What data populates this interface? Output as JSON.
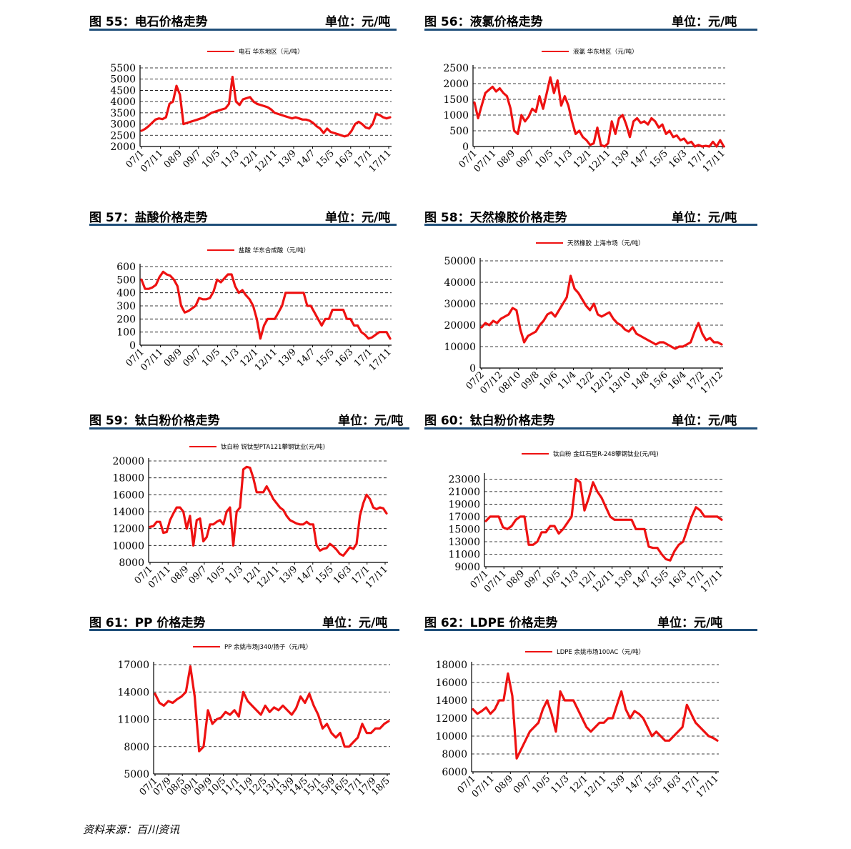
{
  "source": "资料来源：百川资讯",
  "panels": [
    {
      "fig_title": "图 55：电石价格走势",
      "unit_label": "单位：元/吨",
      "chart_data": {
        "type": "line",
        "legend": "电石 华东地区（元/吨）",
        "series_color": "#ee1111",
        "y_ticks": [
          "5500",
          "5000",
          "4500",
          "4000",
          "3500",
          "3000",
          "2500",
          "2000"
        ],
        "x_ticks": [
          "07/1",
          "07/11",
          "08/9",
          "09/7",
          "10/5",
          "11/3",
          "12/1",
          "12/11",
          "13/9",
          "14/7",
          "15/5",
          "16/3",
          "17/1",
          "17/11"
        ],
        "ylim": [
          2000,
          5500
        ],
        "grid": true,
        "y": [
          2700,
          2780,
          2900,
          3050,
          3200,
          3250,
          3220,
          3300,
          3900,
          4000,
          4700,
          4300,
          3000,
          3050,
          3100,
          3150,
          3200,
          3250,
          3300,
          3400,
          3500,
          3550,
          3600,
          3650,
          3700,
          3900,
          5100,
          4000,
          3850,
          4100,
          4150,
          4200,
          4000,
          3900,
          3850,
          3800,
          3750,
          3650,
          3500,
          3450,
          3400,
          3350,
          3300,
          3250,
          3300,
          3250,
          3200,
          3200,
          3150,
          3050,
          2900,
          2800,
          2600,
          2800,
          2650,
          2600,
          2550,
          2500,
          2450,
          2500,
          2700,
          3000,
          3100,
          3000,
          2850,
          2800,
          3000,
          3450,
          3400,
          3300,
          3250,
          3300
        ]
      }
    },
    {
      "fig_title": "图 56：液氯价格走势",
      "unit_label": "单位：元/吨",
      "chart_data": {
        "type": "line",
        "legend": "液氯 华东地区（元/吨）",
        "series_color": "#ee1111",
        "y_ticks": [
          "2500",
          "2000",
          "1500",
          "1000",
          "500",
          "0"
        ],
        "x_ticks": [
          "07/1",
          "07/11",
          "08/9",
          "09/7",
          "10/5",
          "11/3",
          "12/1",
          "12/11",
          "13/9",
          "14/7",
          "15/5",
          "16/3",
          "17/1",
          "17/11"
        ],
        "ylim": [
          0,
          2500
        ],
        "grid": true,
        "y": [
          1400,
          900,
          1300,
          1700,
          1800,
          1900,
          1750,
          1850,
          1700,
          1600,
          1200,
          500,
          400,
          1000,
          800,
          950,
          1200,
          1100,
          1600,
          1200,
          1700,
          2200,
          1700,
          2100,
          1300,
          1600,
          1300,
          800,
          400,
          500,
          300,
          200,
          50,
          100,
          600,
          50,
          0,
          100,
          800,
          400,
          900,
          1000,
          700,
          300,
          800,
          900,
          750,
          800,
          700,
          900,
          800,
          600,
          700,
          400,
          500,
          300,
          350,
          200,
          250,
          100,
          150,
          0,
          50,
          0,
          20,
          0,
          150,
          0,
          200,
          0
        ]
      }
    },
    {
      "fig_title": "图 57：盐酸价格走势",
      "unit_label": "单位：元/吨",
      "chart_data": {
        "type": "line",
        "legend": "盐酸 华东合成酸（元/吨）",
        "series_color": "#ee1111",
        "y_ticks": [
          "600",
          "500",
          "400",
          "300",
          "200",
          "100",
          "0"
        ],
        "x_ticks": [
          "07/1",
          "07/11",
          "08/9",
          "09/7",
          "10/5",
          "11/3",
          "12/1",
          "12/11",
          "13/9",
          "14/7",
          "15/5",
          "16/3",
          "17/1",
          "17/11"
        ],
        "ylim": [
          0,
          600
        ],
        "grid": true,
        "y": [
          500,
          430,
          430,
          440,
          460,
          520,
          560,
          540,
          530,
          500,
          450,
          300,
          250,
          260,
          280,
          300,
          360,
          350,
          350,
          360,
          410,
          500,
          480,
          510,
          540,
          540,
          450,
          400,
          420,
          380,
          350,
          300,
          200,
          50,
          150,
          200,
          200,
          200,
          250,
          300,
          400,
          400,
          400,
          400,
          400,
          400,
          300,
          300,
          250,
          200,
          150,
          200,
          200,
          270,
          270,
          270,
          270,
          200,
          200,
          150,
          150,
          100,
          80,
          50,
          60,
          80,
          100,
          100,
          100,
          50
        ]
      }
    },
    {
      "fig_title": "图 58：天然橡胶价格走势",
      "unit_label": "单位：元/吨",
      "chart_data": {
        "type": "line",
        "legend": "天然橡胶 上海市场（元/吨）",
        "series_color": "#ee1111",
        "y_ticks": [
          "50000",
          "40000",
          "30000",
          "20000",
          "10000",
          "0"
        ],
        "x_ticks": [
          "07/2",
          "07/12",
          "08/10",
          "09/8",
          "10/6",
          "11/4",
          "12/2",
          "12/12",
          "13/10",
          "14/8",
          "15/6",
          "16/4",
          "17/2",
          "17/12"
        ],
        "ylim": [
          0,
          50000
        ],
        "grid": true,
        "y": [
          19000,
          21000,
          20000,
          22000,
          21000,
          23000,
          24000,
          25000,
          28000,
          27000,
          18000,
          12000,
          15000,
          16000,
          17000,
          20000,
          22000,
          25000,
          26000,
          24000,
          27000,
          30000,
          33000,
          43000,
          37000,
          35000,
          32000,
          29000,
          27000,
          30000,
          25000,
          24000,
          25000,
          26000,
          23000,
          21000,
          20000,
          18000,
          17000,
          19000,
          16000,
          15000,
          14000,
          13000,
          12000,
          11000,
          12000,
          12000,
          11000,
          10000,
          9000,
          10000,
          10000,
          11000,
          12000,
          17000,
          21000,
          16000,
          13000,
          14000,
          12000,
          12000,
          11000
        ]
      }
    },
    {
      "fig_title": "图 59：钛白粉价格走势",
      "unit_label": "单位：元/吨",
      "chart_data": {
        "type": "line",
        "legend": "钛白粉 锐钛型PTA121攀钢钛业(元/吨)",
        "series_color": "#ee1111",
        "y_ticks": [
          "20000",
          "18000",
          "16000",
          "14000",
          "12000",
          "10000",
          "8000"
        ],
        "x_ticks": [
          "07/1",
          "07/11",
          "08/9",
          "09/7",
          "10/5",
          "11/3",
          "12/1",
          "12/11",
          "13/9",
          "14/7",
          "15/5",
          "16/3",
          "17/1",
          "17/11"
        ],
        "ylim": [
          8000,
          20000
        ],
        "grid": true,
        "y": [
          12200,
          12300,
          12800,
          12800,
          11500,
          11600,
          13000,
          13800,
          14500,
          14500,
          14000,
          12000,
          13500,
          10000,
          13000,
          13200,
          10500,
          11000,
          12500,
          12500,
          12800,
          13000,
          12500,
          14000,
          14500,
          10000,
          14000,
          14500,
          19000,
          19300,
          19200,
          18000,
          16300,
          16300,
          16300,
          17000,
          16300,
          15500,
          15000,
          14500,
          14200,
          13500,
          13000,
          12800,
          12600,
          12500,
          12500,
          12800,
          12500,
          12500,
          10000,
          9400,
          9600,
          9700,
          10200,
          9900,
          9500,
          9000,
          8800,
          9300,
          9800,
          9600,
          10200,
          13500,
          15000,
          16000,
          15500,
          14500,
          14300,
          14500,
          14400,
          13800
        ]
      }
    },
    {
      "fig_title": "图 60：钛白粉价格走势",
      "unit_label": "单位：元/吨",
      "chart_data": {
        "type": "line",
        "legend": "钛白粉 金红石型R-248攀钢钛业(元/吨)",
        "series_color": "#ee1111",
        "y_ticks": [
          "23000",
          "21000",
          "19000",
          "17000",
          "15000",
          "13000",
          "11000",
          "9000"
        ],
        "x_ticks": [
          "07/1",
          "07/11",
          "08/9",
          "09/7",
          "10/5",
          "11/3",
          "12/1",
          "12/11",
          "13/9",
          "14/7",
          "15/5",
          "16/3",
          "17/1",
          "17/11"
        ],
        "ylim": [
          9000,
          23500
        ],
        "grid": true,
        "y": [
          16300,
          17000,
          17000,
          17000,
          15300,
          15000,
          15500,
          16500,
          17000,
          17000,
          12500,
          12500,
          13000,
          14500,
          14500,
          15500,
          15500,
          14300,
          15000,
          16000,
          17000,
          23000,
          22500,
          18000,
          20000,
          22500,
          21000,
          20000,
          18500,
          17000,
          16500,
          16500,
          16500,
          16500,
          16500,
          15000,
          15000,
          15000,
          12200,
          12000,
          12000,
          11000,
          10200,
          10000,
          11500,
          12500,
          13000,
          15000,
          17000,
          18500,
          18000,
          17000,
          17000,
          17000,
          17000,
          16500
        ]
      }
    },
    {
      "fig_title": "图 61：PP 价格走势",
      "unit_label": "单位：元/吨",
      "chart_data": {
        "type": "line",
        "legend": "PP 余姚市场J340/扬子（元/吨）",
        "series_color": "#ee1111",
        "y_ticks": [
          "17000",
          "14000",
          "11000",
          "8000",
          "5000"
        ],
        "x_ticks": [
          "07/1",
          "07/9",
          "08/5",
          "09/1",
          "09/9",
          "10/5",
          "11/1",
          "11/9",
          "12/5",
          "13/1",
          "13/9",
          "14/5",
          "15/1",
          "15/9",
          "16/5",
          "17/1",
          "17/9",
          "18/5"
        ],
        "ylim": [
          5000,
          17000
        ],
        "grid": true,
        "y": [
          13800,
          12800,
          12500,
          13000,
          12800,
          13200,
          13500,
          14000,
          16800,
          13500,
          7500,
          8000,
          12000,
          10500,
          11000,
          11200,
          11800,
          11500,
          12000,
          11300,
          14000,
          13000,
          12500,
          12000,
          11500,
          12500,
          11800,
          12300,
          12000,
          12500,
          12000,
          11500,
          12200,
          13500,
          12800,
          13800,
          12500,
          11500,
          10000,
          10500,
          9500,
          9000,
          9500,
          8000,
          8000,
          8500,
          9000,
          10500,
          9500,
          9500,
          10000,
          10000,
          10500,
          10800
        ]
      }
    },
    {
      "fig_title": "图 62：LDPE 价格走势",
      "unit_label": "单位：元/吨",
      "chart_data": {
        "type": "line",
        "legend": "LDPE 余姚市场100AC（元/吨）",
        "series_color": "#ee1111",
        "y_ticks": [
          "18000",
          "16000",
          "14000",
          "12000",
          "10000",
          "8000",
          "6000"
        ],
        "x_ticks": [
          "07/1",
          "07/11",
          "08/9",
          "09/7",
          "10/5",
          "11/3",
          "12/1",
          "12/11",
          "13/9",
          "14/7",
          "15/5",
          "16/3",
          "17/1",
          "17/11"
        ],
        "ylim": [
          6000,
          18000
        ],
        "grid": true,
        "y": [
          13000,
          12500,
          12800,
          13200,
          12500,
          13000,
          14000,
          14000,
          17000,
          14500,
          7500,
          8500,
          9500,
          10500,
          11000,
          11500,
          13000,
          14000,
          12500,
          10500,
          15000,
          14000,
          14000,
          14000,
          13000,
          12000,
          11000,
          10500,
          11000,
          11500,
          11500,
          12000,
          12000,
          13500,
          15000,
          13000,
          12000,
          12800,
          12500,
          12000,
          11000,
          10000,
          10500,
          10000,
          9500,
          9500,
          10000,
          10500,
          11000,
          13500,
          12500,
          11500,
          11000,
          10500,
          10000,
          9800,
          9500
        ]
      }
    }
  ]
}
